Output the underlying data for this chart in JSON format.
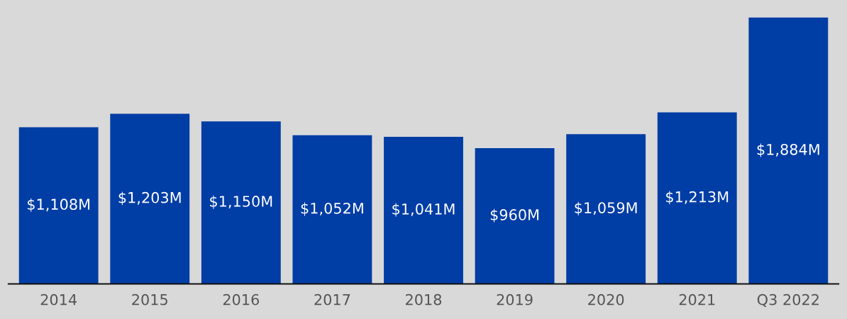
{
  "chart_data": {
    "type": "bar",
    "categories": [
      "2014",
      "2015",
      "2016",
      "2017",
      "2018",
      "2019",
      "2020",
      "2021",
      "Q3 2022"
    ],
    "values": [
      1108,
      1203,
      1150,
      1052,
      1041,
      960,
      1059,
      1213,
      1884
    ],
    "value_labels": [
      "$1,108M",
      "$1,203M",
      "$1,150M",
      "$1,052M",
      "$1,041M",
      "$960M",
      "$1,059M",
      "$1,213M",
      "$1,884M"
    ],
    "color": "#003da5",
    "grid": false,
    "legend": false
  }
}
